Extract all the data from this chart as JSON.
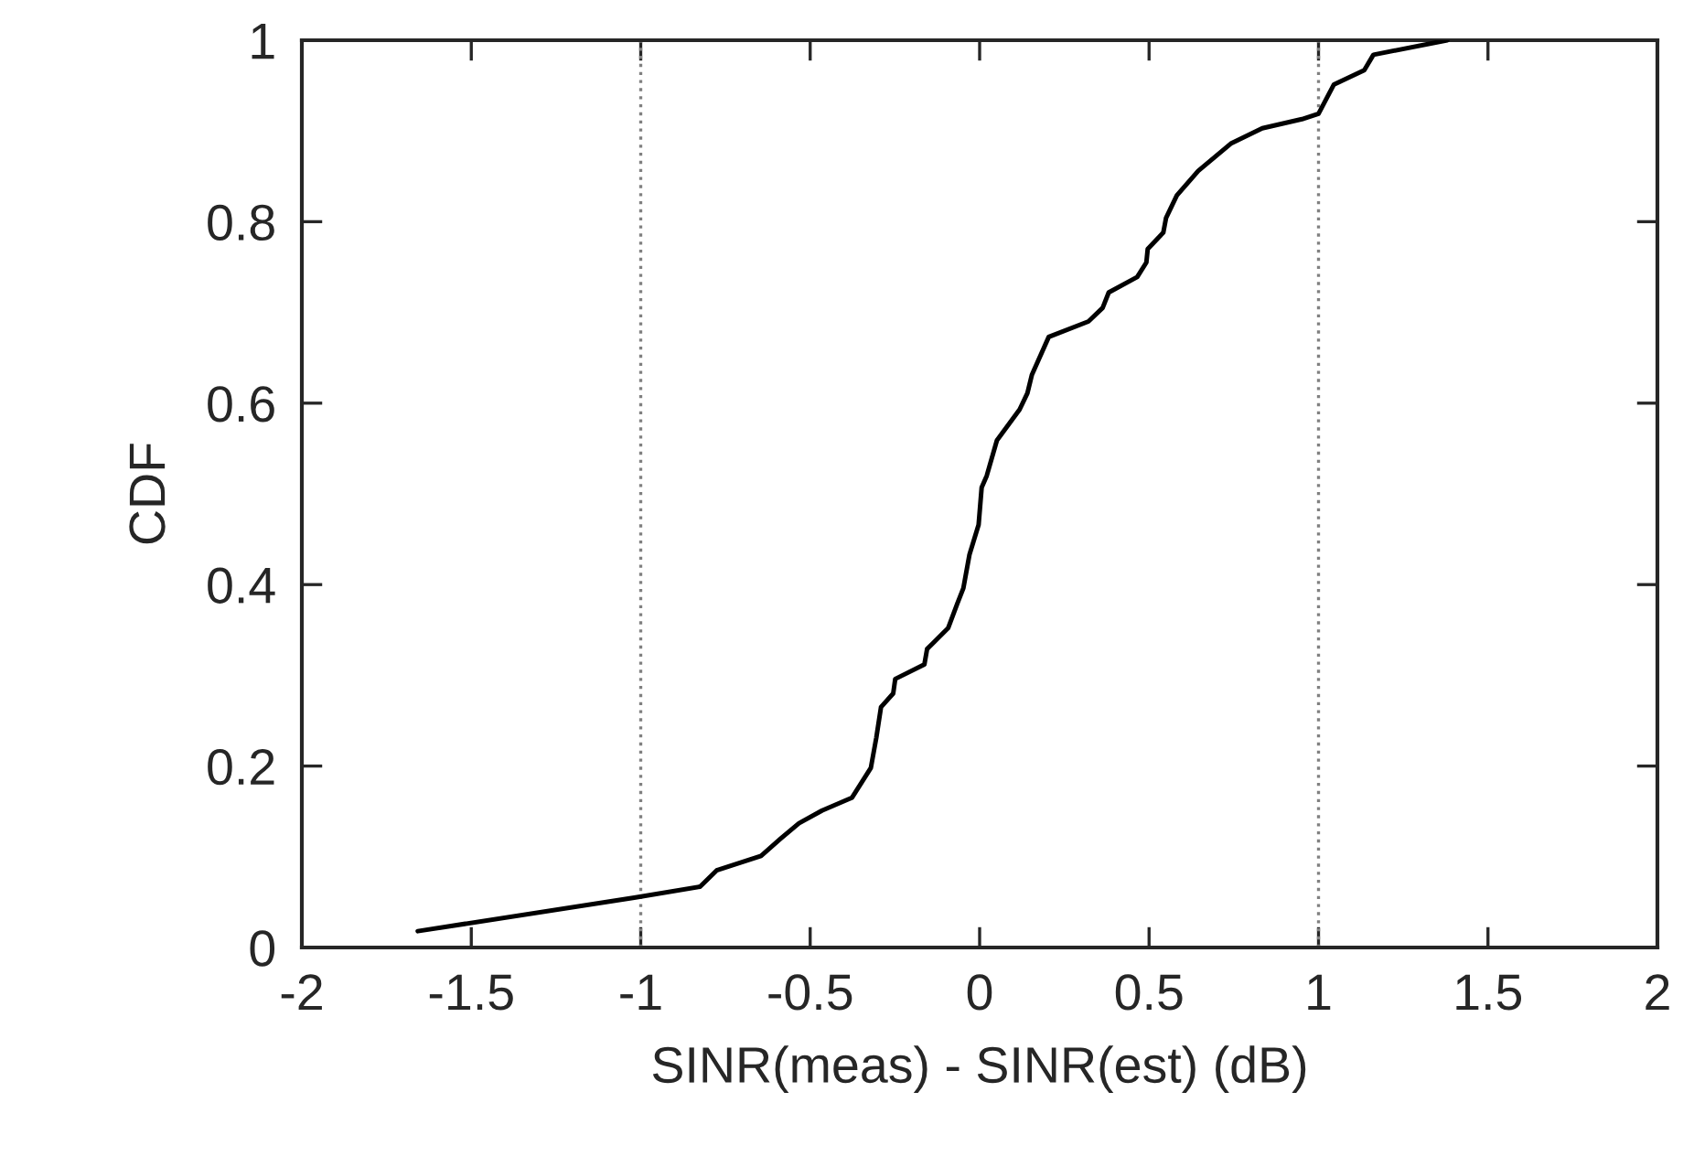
{
  "chart_data": {
    "type": "line",
    "xlabel": "SINR(meas) - SINR(est) (dB)",
    "ylabel": "CDF",
    "xlim": [
      -2,
      2
    ],
    "ylim": [
      0,
      1
    ],
    "xticks": [
      -2,
      -1.5,
      -1,
      -0.5,
      0,
      0.5,
      1,
      1.5,
      2
    ],
    "yticks": [
      0,
      0.2,
      0.4,
      0.6,
      0.8,
      1
    ],
    "grid": false,
    "marker": "none",
    "line_style": "solid",
    "ref_lines": [
      {
        "axis": "x",
        "value": -1,
        "color": "#808080",
        "line_style": "dotted"
      },
      {
        "axis": "x",
        "value": 1,
        "color": "#808080",
        "line_style": "dotted"
      }
    ],
    "series": [
      {
        "color": "#000000",
        "x": [
          -1.658,
          -1.019,
          -0.825,
          -0.776,
          -0.645,
          -0.587,
          -0.533,
          -0.465,
          -0.377,
          -0.321,
          -0.305,
          -0.291,
          -0.255,
          -0.249,
          -0.163,
          -0.155,
          -0.093,
          -0.066,
          -0.048,
          -0.03,
          -0.003,
          0.006,
          0.021,
          0.051,
          0.118,
          0.141,
          0.154,
          0.204,
          0.321,
          0.363,
          0.381,
          0.465,
          0.492,
          0.496,
          0.542,
          0.55,
          0.582,
          0.645,
          0.741,
          0.834,
          0.951,
          1.0,
          1.045,
          1.135,
          1.162,
          1.38
        ],
        "values": [
          0.018,
          0.055,
          0.067,
          0.085,
          0.101,
          0.12,
          0.137,
          0.151,
          0.165,
          0.198,
          0.231,
          0.265,
          0.28,
          0.296,
          0.312,
          0.329,
          0.352,
          0.379,
          0.396,
          0.433,
          0.466,
          0.507,
          0.52,
          0.559,
          0.593,
          0.611,
          0.631,
          0.673,
          0.69,
          0.705,
          0.722,
          0.739,
          0.755,
          0.77,
          0.788,
          0.804,
          0.829,
          0.856,
          0.886,
          0.903,
          0.913,
          0.919,
          0.951,
          0.967,
          0.984,
          1.0
        ]
      }
    ]
  }
}
